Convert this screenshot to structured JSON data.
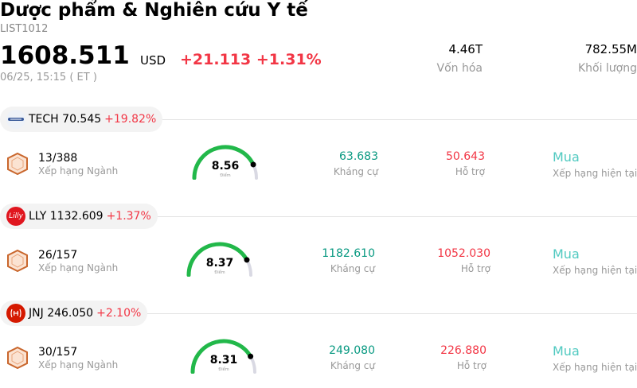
{
  "header": {
    "title": "Dược phẩm & Nghiên cứu Y tế",
    "symbol": "LIST1012",
    "price": "1608.511",
    "currency": "USD",
    "change": "+21.113",
    "change_pct": "+1.31%",
    "time": "06/25, 15:15  ( ET )",
    "stats": [
      {
        "value": "4.46T",
        "label": "Vốn hóa"
      },
      {
        "value": "782.55M",
        "label": "Khối lượng"
      }
    ]
  },
  "labels": {
    "rank": "Xếp hạng Ngành",
    "score": "Điểm",
    "resistance": "Kháng cự",
    "support": "Hỗ trợ",
    "rating": "Xếp hạng hiện tại"
  },
  "stocks": [
    {
      "ticker": "TECH",
      "price": "70.545",
      "change_pct": "+19.82%",
      "logo_text": "",
      "rank": "13/388",
      "score": "8.56",
      "score_value": 8.56,
      "resistance": "63.683",
      "support": "50.643",
      "rating": "Mua"
    },
    {
      "ticker": "LLY",
      "price": "1132.609",
      "change_pct": "+1.37%",
      "logo_text": "Lilly",
      "rank": "26/157",
      "score": "8.37",
      "score_value": 8.37,
      "resistance": "1182.610",
      "support": "1052.030",
      "rating": "Mua"
    },
    {
      "ticker": "JNJ",
      "price": "246.050",
      "change_pct": "+2.10%",
      "logo_text": "",
      "rank": "30/157",
      "score": "8.31",
      "score_value": 8.31,
      "resistance": "249.080",
      "support": "226.880",
      "rating": "Mua"
    }
  ],
  "colors": {
    "up_red": "#f23645",
    "resistance_green": "#089981",
    "gauge_green": "#22b84a",
    "rating_teal": "#4fc9c0"
  }
}
